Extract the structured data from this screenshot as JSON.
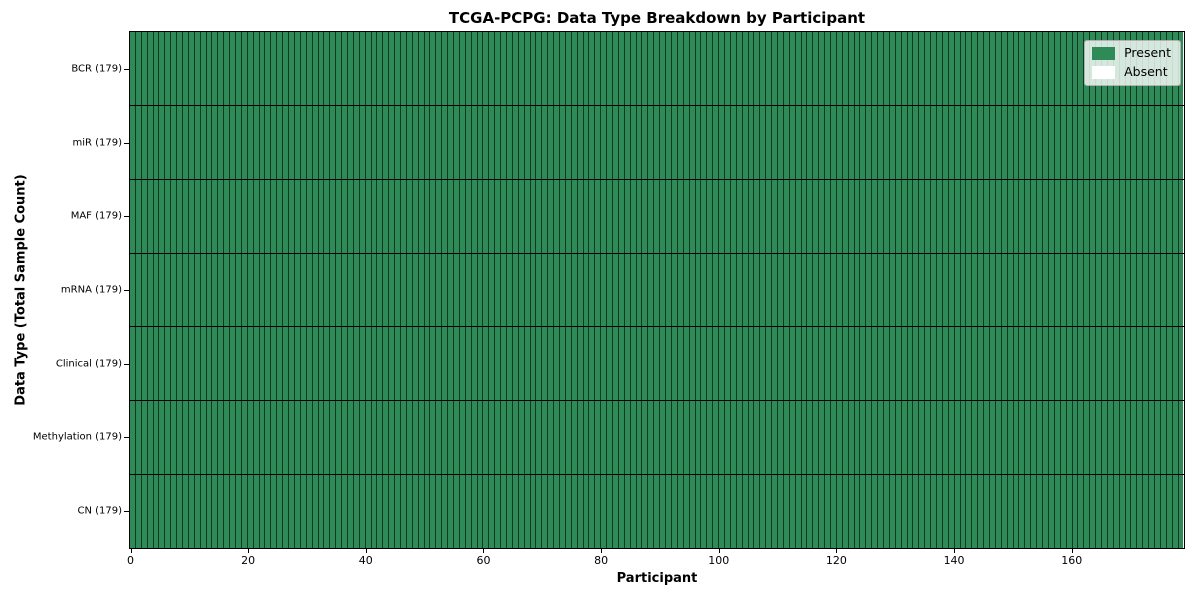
{
  "chart_data": {
    "type": "heatmap",
    "title": "TCGA-PCPG: Data Type Breakdown by Participant",
    "xlabel": "Participant",
    "ylabel": "Data Type (Total Sample Count)",
    "xlim": [
      0,
      179
    ],
    "n_participants": 179,
    "x_ticks": [
      0,
      20,
      40,
      60,
      80,
      100,
      120,
      140,
      160
    ],
    "rows": [
      {
        "label": "BCR (179)",
        "data_type": "BCR",
        "total_samples": 179,
        "present_count": 179,
        "absent_count": 0
      },
      {
        "label": "miR (179)",
        "data_type": "miR",
        "total_samples": 179,
        "present_count": 179,
        "absent_count": 0
      },
      {
        "label": "MAF (179)",
        "data_type": "MAF",
        "total_samples": 179,
        "present_count": 179,
        "absent_count": 0
      },
      {
        "label": "mRNA (179)",
        "data_type": "mRNA",
        "total_samples": 179,
        "present_count": 179,
        "absent_count": 0
      },
      {
        "label": "Clinical (179)",
        "data_type": "Clinical",
        "total_samples": 179,
        "present_count": 179,
        "absent_count": 0
      },
      {
        "label": "Methylation (179)",
        "data_type": "Methylation",
        "total_samples": 179,
        "present_count": 179,
        "absent_count": 0
      },
      {
        "label": "CN (179)",
        "data_type": "CN",
        "total_samples": 179,
        "present_count": 179,
        "absent_count": 0
      }
    ],
    "legend": {
      "position": "upper right",
      "entries": [
        {
          "label": "Present",
          "color": "#2e8b57"
        },
        {
          "label": "Absent",
          "color": "#ffffff"
        }
      ]
    },
    "colors": {
      "present": "#2e8b57",
      "absent": "#ffffff",
      "cell_edge": "rgba(0,0,0,0.6)",
      "row_separator": "#000000",
      "spine": "#000000"
    },
    "layout_hints": {
      "grid": "per-cell vertical edges and black row separator lines",
      "legend_position": "upper right inside plot"
    }
  }
}
